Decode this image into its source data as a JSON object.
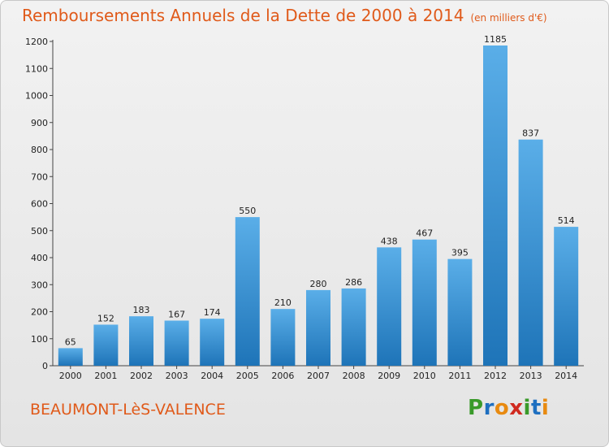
{
  "header": {
    "title": "Remboursements Annuels de la Dette de 2000 à 2014",
    "unit": "(en milliers d'€)"
  },
  "footer": {
    "town": "BEAUMONT-LèS-VALENCE",
    "logo": "Proxiti"
  },
  "colors": {
    "title": "#e05a1a",
    "bar_light": "#5aaee8",
    "bar_dark": "#1e74b8"
  },
  "chart_data": {
    "type": "bar",
    "title": "Remboursements Annuels de la Dette de 2000 à 2014",
    "subtitle": "(en milliers d'€)",
    "xlabel": "",
    "ylabel": "",
    "categories": [
      "2000",
      "2001",
      "2002",
      "2003",
      "2004",
      "2005",
      "2006",
      "2007",
      "2008",
      "2009",
      "2010",
      "2011",
      "2012",
      "2013",
      "2014"
    ],
    "values": [
      65,
      152,
      183,
      167,
      174,
      550,
      210,
      280,
      286,
      438,
      467,
      395,
      1185,
      837,
      514
    ],
    "ylim": [
      0,
      1200
    ],
    "yticks": [
      0,
      100,
      200,
      300,
      400,
      500,
      600,
      700,
      800,
      900,
      1000,
      1100,
      1200
    ],
    "grid": false,
    "data_labels": true
  }
}
